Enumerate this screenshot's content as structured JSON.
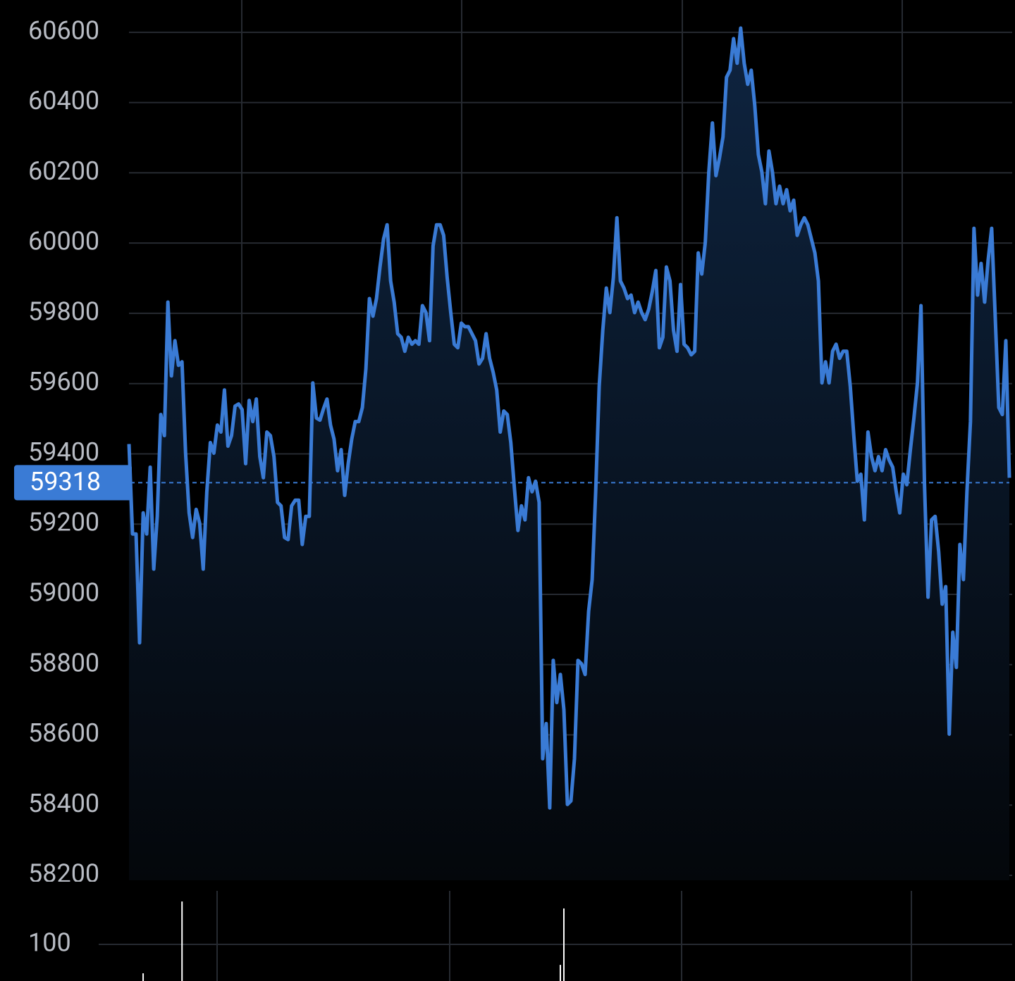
{
  "chart_data": [
    {
      "type": "area",
      "values": [
        59428,
        59172,
        59172,
        58862,
        59232,
        59172,
        59362,
        59072,
        59222,
        59512,
        59452,
        59832,
        59622,
        59722,
        59652,
        59662,
        59402,
        59232,
        59162,
        59242,
        59202,
        59072,
        59292,
        59432,
        59402,
        59482,
        59462,
        59582,
        59422,
        59452,
        59536,
        59542,
        59526,
        59372,
        59552,
        59492,
        59556,
        59392,
        59332,
        59462,
        59452,
        59392,
        59262,
        59252,
        59162,
        59156,
        59252,
        59268,
        59268,
        59142,
        59222,
        59222,
        59602,
        59502,
        59496,
        59528,
        59556,
        59482,
        59442,
        59352,
        59412,
        59282,
        59372,
        59442,
        59492,
        59492,
        59532,
        59642,
        59842,
        59792,
        59842,
        59932,
        60012,
        60052,
        59892,
        59832,
        59742,
        59732,
        59692,
        59732,
        59712,
        59722,
        59712,
        59822,
        59802,
        59722,
        59992,
        60052,
        60052,
        60022,
        59902,
        59802,
        59712,
        59702,
        59772,
        59762,
        59762,
        59742,
        59722,
        59656,
        59672,
        59742,
        59672,
        59632,
        59582,
        59462,
        59522,
        59512,
        59432,
        59302,
        59182,
        59252,
        59212,
        59332,
        59292,
        59322,
        59262,
        58532,
        58632,
        58392,
        58812,
        58692,
        58772,
        58672,
        58402,
        58412,
        58532,
        58812,
        58802,
        58772,
        58952,
        59042,
        59292,
        59592,
        59752,
        59872,
        59802,
        59902,
        60072,
        59892,
        59872,
        59842,
        59852,
        59802,
        59832,
        59802,
        59782,
        59812,
        59862,
        59922,
        59702,
        59732,
        59932,
        59892,
        59752,
        59692,
        59882,
        59712,
        59702,
        59682,
        59692,
        59972,
        59912,
        60002,
        60202,
        60342,
        60192,
        60242,
        60302,
        60472,
        60492,
        60582,
        60512,
        60612,
        60512,
        60452,
        60492,
        60392,
        60252,
        60202,
        60112,
        60262,
        60202,
        60112,
        60162,
        60112,
        60152,
        60092,
        60122,
        60022,
        60052,
        60072,
        60052,
        60012,
        59972,
        59892,
        59602,
        59662,
        59602,
        59692,
        59712,
        59672,
        59692,
        59692,
        59592,
        59452,
        59322,
        59342,
        59212,
        59462,
        59392,
        59352,
        59392,
        59352,
        59412,
        59382,
        59362,
        59292,
        59232,
        59342,
        59312,
        59412,
        59502,
        59602,
        59822,
        59312,
        58992,
        59212,
        59222,
        59122,
        58972,
        59022,
        58602,
        58892,
        58792,
        59142,
        59042,
        59292,
        59492,
        60042,
        59852,
        59942,
        59832,
        59952,
        60042,
        59792,
        59532,
        59512,
        59722,
        59332
      ],
      "color": "#3a7bd5",
      "current_value": 59318,
      "ylim": [
        58186,
        60692
      ],
      "yticks": [
        58200,
        58400,
        58600,
        58800,
        59000,
        59200,
        59400,
        59600,
        59800,
        60000,
        60200,
        60400,
        60600
      ],
      "grid": true
    },
    {
      "type": "bar",
      "x": [
        4,
        15,
        122,
        123
      ],
      "values": [
        21,
        217,
        44,
        198
      ],
      "color": "#ffffff",
      "ylim": [
        0,
        246
      ],
      "yticks": [
        100
      ],
      "grid": true
    }
  ]
}
